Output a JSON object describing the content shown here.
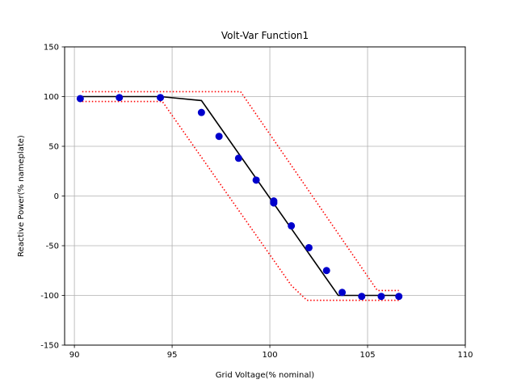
{
  "chart_data": {
    "type": "line",
    "title": "Volt-Var Function1",
    "xlabel": "Grid Voltage(% nominal)",
    "ylabel": "Reactive Power(% nameplate)",
    "xlim": [
      89.5,
      110
    ],
    "ylim": [
      -150,
      150
    ],
    "xticks": [
      90,
      95,
      100,
      105,
      110
    ],
    "yticks": [
      150,
      100,
      50,
      0,
      -50,
      -100,
      -150
    ],
    "grid": true,
    "colors": {
      "curve": "#000000",
      "envelope": "#ff0000",
      "points": "#0000cc"
    },
    "series": [
      {
        "role": "curve",
        "x": [
          90.3,
          94.4,
          96.5,
          103.5,
          106.6
        ],
        "y": [
          100,
          100,
          96,
          -100,
          -100
        ]
      },
      {
        "role": "upper-envelope",
        "x": [
          90.4,
          98.5,
          105.5,
          106.6
        ],
        "y": [
          105,
          105,
          -95,
          -95
        ]
      },
      {
        "role": "lower-envelope",
        "x": [
          90.4,
          94.5,
          101.1,
          101.9,
          106.6
        ],
        "y": [
          95,
          95,
          -90,
          -105,
          -105
        ]
      },
      {
        "role": "points",
        "x": [
          90.3,
          92.3,
          94.4,
          96.5,
          97.4,
          98.4,
          99.3,
          100.2,
          100.2,
          101.1,
          102.0,
          102.9,
          103.7,
          104.7,
          105.7,
          106.6
        ],
        "y": [
          98,
          99,
          99,
          84,
          60,
          38,
          16,
          -5,
          -7,
          -30,
          -52,
          -75,
          -97,
          -101,
          -101,
          -101
        ]
      }
    ]
  }
}
